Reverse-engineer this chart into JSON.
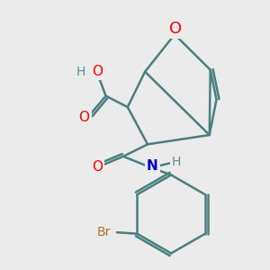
{
  "background_color": "#ebebeb",
  "bond_color": "#4a7f7f",
  "bond_width": 1.8,
  "atom_colors": {
    "O": "#ff0000",
    "N": "#0000cc",
    "Br": "#b07020",
    "C": "#4a7f7f",
    "H": "#5a8f8f"
  },
  "font_size": 11,
  "fig_width": 3.0,
  "fig_height": 3.0
}
